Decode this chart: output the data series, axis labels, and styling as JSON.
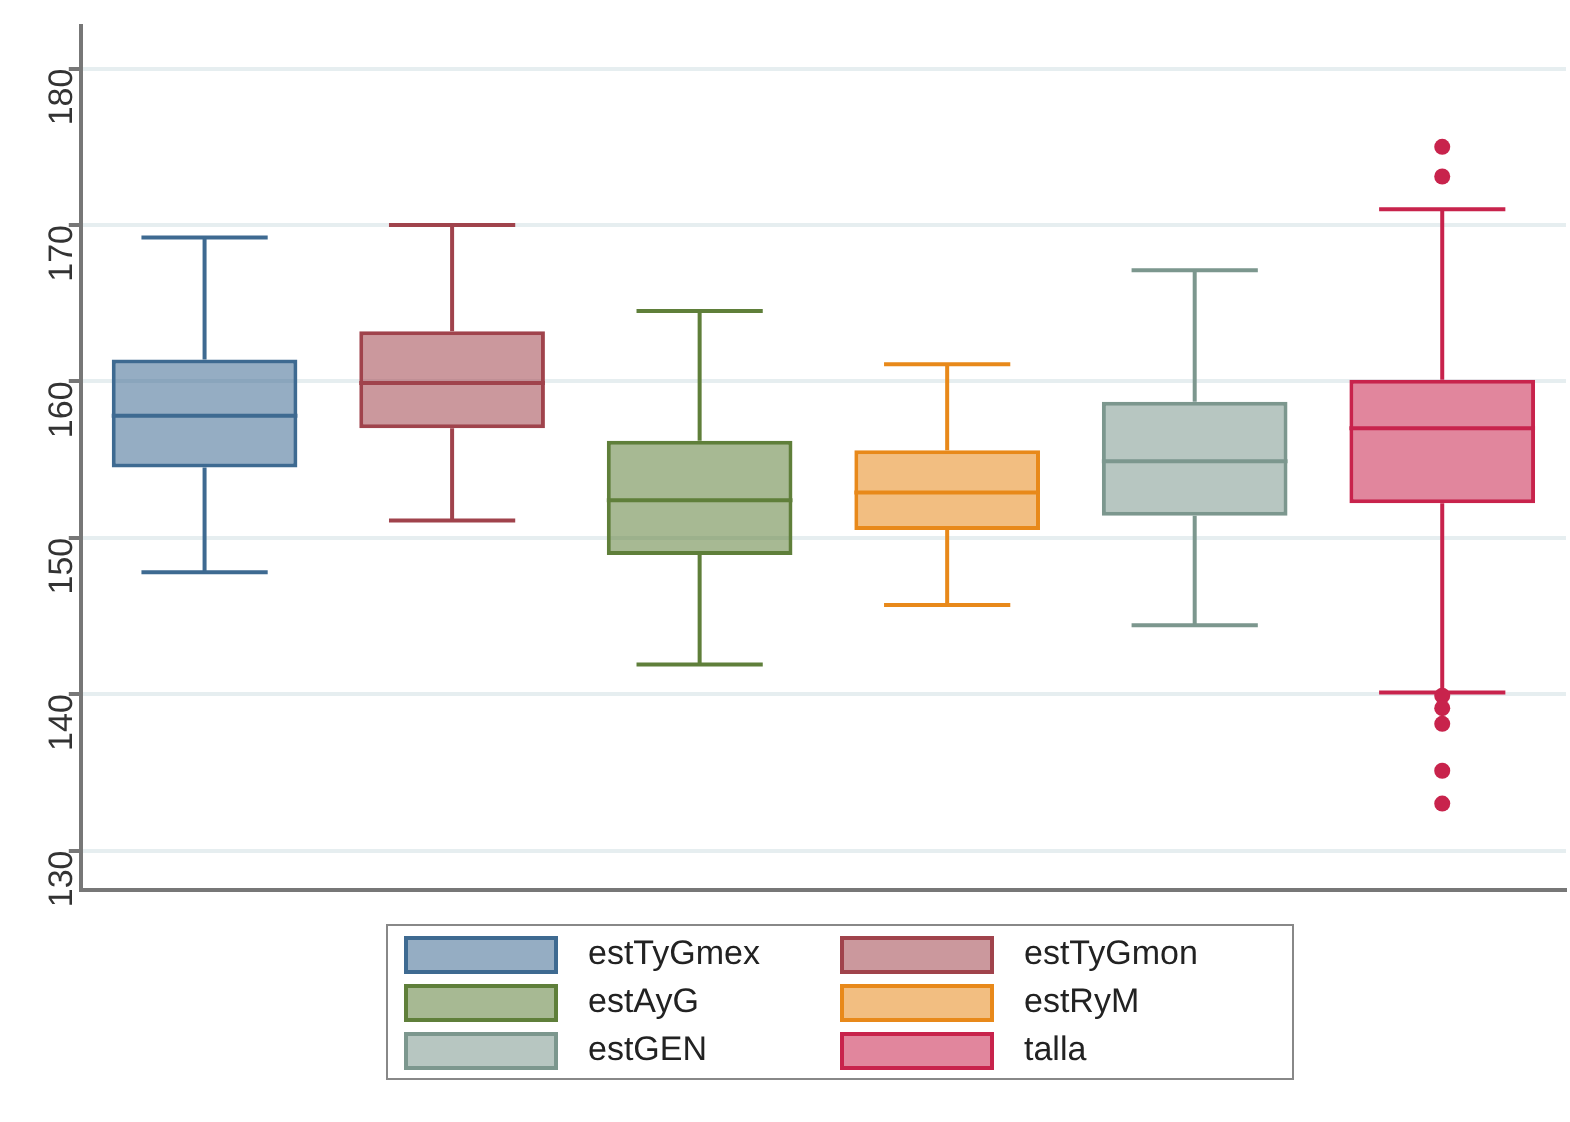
{
  "chart_data": {
    "type": "box",
    "categories": [
      null,
      null,
      null,
      null,
      null,
      null
    ],
    "series": [
      {
        "name": "estTyGmex",
        "color": "#3e6a91",
        "boxes": [
          {
            "low": 147.8,
            "q1": 154.5,
            "median": 157.8,
            "q3": 161.4,
            "high": 169.2
          },
          null,
          null,
          null,
          null,
          null
        ]
      },
      {
        "name": "estTyGmon",
        "color": "#a0434c",
        "boxes": [
          null,
          {
            "low": 151.1,
            "q1": 157.0,
            "median": 159.9,
            "q3": 163.2,
            "high": 170.0
          },
          null,
          null,
          null,
          null
        ]
      },
      {
        "name": "estAyG",
        "color": "#5f7f3a",
        "boxes": [
          null,
          null,
          {
            "low": 141.9,
            "q1": 148.9,
            "median": 152.4,
            "q3": 156.2,
            "high": 164.5
          },
          null,
          null,
          null
        ]
      },
      {
        "name": "estRyM",
        "color": "#e8891a",
        "boxes": [
          null,
          null,
          null,
          {
            "low": 145.7,
            "q1": 150.5,
            "median": 152.9,
            "q3": 155.6,
            "high": 161.1
          },
          null,
          null
        ]
      },
      {
        "name": "estGEN",
        "color": "#7c978e",
        "boxes": [
          null,
          null,
          null,
          null,
          {
            "low": 144.4,
            "q1": 151.4,
            "median": 154.9,
            "q3": 158.7,
            "high": 167.1
          },
          null
        ]
      },
      {
        "name": "talla",
        "color": "#c8234c",
        "boxes": [
          null,
          null,
          null,
          null,
          null,
          {
            "low": 140.1,
            "q1": 152.2,
            "median": 157.0,
            "q3": 160.1,
            "high": 171.0,
            "outliers": [
              175.0,
              173.1,
              139.9,
              139.1,
              138.1,
              135.1,
              133.0
            ]
          }
        ]
      }
    ],
    "ylim": [
      127.5,
      182.7
    ],
    "yticks": [
      130,
      140,
      150,
      160,
      170,
      180
    ],
    "grid": "y",
    "legend": "bottom",
    "tick_labels": "y"
  }
}
